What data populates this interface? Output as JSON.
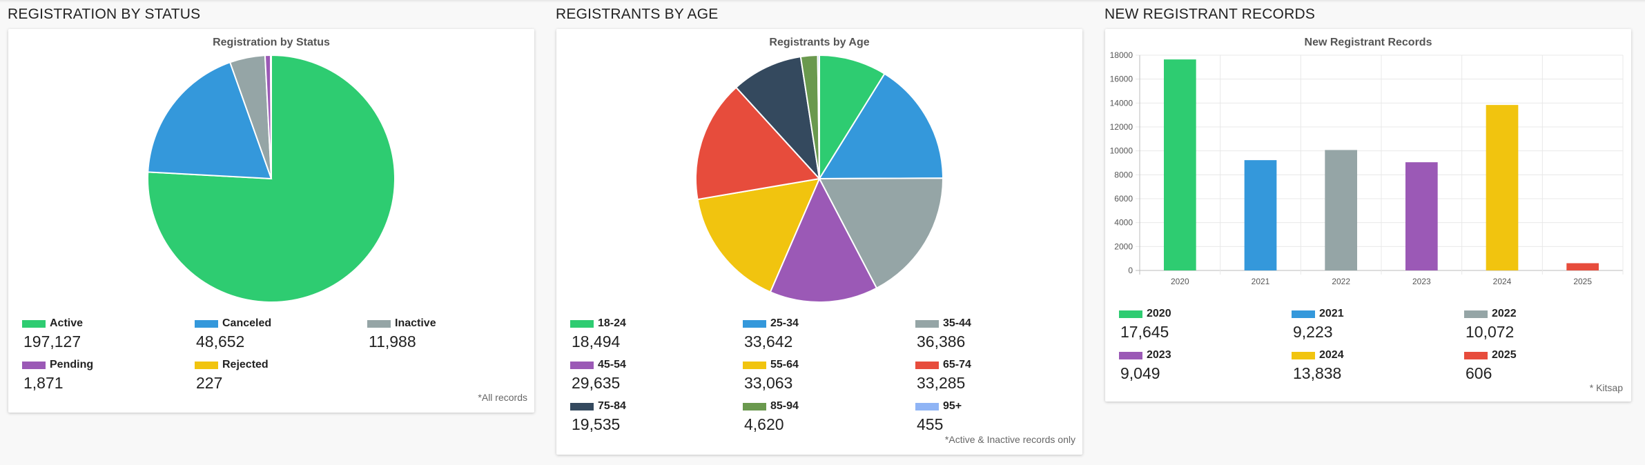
{
  "sections": [
    {
      "title": "REGISTRATION BY STATUS"
    },
    {
      "title": "REGISTRANTS BY AGE"
    },
    {
      "title": "NEW REGISTRANT RECORDS"
    }
  ],
  "footnotes": [
    "*All records",
    "*Active & Inactive records only",
    "* Kitsap"
  ],
  "chart_data": [
    {
      "type": "pie",
      "title": "Registration by Status",
      "categories": [
        "Active",
        "Canceled",
        "Inactive",
        "Pending",
        "Rejected"
      ],
      "values": [
        197127,
        48652,
        11988,
        1871,
        227
      ],
      "value_labels": [
        "197,127",
        "48,652",
        "11,988",
        "1,871",
        "227"
      ],
      "colors": [
        "#2ecc71",
        "#3498db",
        "#95a5a6",
        "#9b59b6",
        "#f1c40f"
      ],
      "legend": "bottom"
    },
    {
      "type": "pie",
      "title": "Registrants by Age",
      "categories": [
        "18-24",
        "25-34",
        "35-44",
        "45-54",
        "55-64",
        "65-74",
        "75-84",
        "85-94",
        "95+"
      ],
      "values": [
        18494,
        33642,
        36386,
        29635,
        33063,
        33285,
        19535,
        4620,
        455
      ],
      "value_labels": [
        "18,494",
        "33,642",
        "36,386",
        "29,635",
        "33,063",
        "33,285",
        "19,535",
        "4,620",
        "455"
      ],
      "colors": [
        "#2ecc71",
        "#3498db",
        "#95a5a6",
        "#9b59b6",
        "#f1c40f",
        "#e74c3c",
        "#34495e",
        "#6a994e",
        "#8fb4f5"
      ],
      "legend": "bottom"
    },
    {
      "type": "bar",
      "title": "New Registrant Records",
      "categories": [
        "2020",
        "2021",
        "2022",
        "2023",
        "2024",
        "2025"
      ],
      "values": [
        17645,
        9223,
        10072,
        9049,
        13838,
        606
      ],
      "value_labels": [
        "17,645",
        "9,223",
        "10,072",
        "9,049",
        "13,838",
        "606"
      ],
      "colors": [
        "#2ecc71",
        "#3498db",
        "#95a5a6",
        "#9b59b6",
        "#f1c40f",
        "#e74c3c"
      ],
      "ylim": [
        0,
        18000
      ],
      "yticks": [
        "0",
        "2000",
        "4000",
        "6000",
        "8000",
        "10000",
        "12000",
        "14000",
        "16000",
        "18000"
      ],
      "grid": true,
      "legend": "bottom"
    }
  ]
}
